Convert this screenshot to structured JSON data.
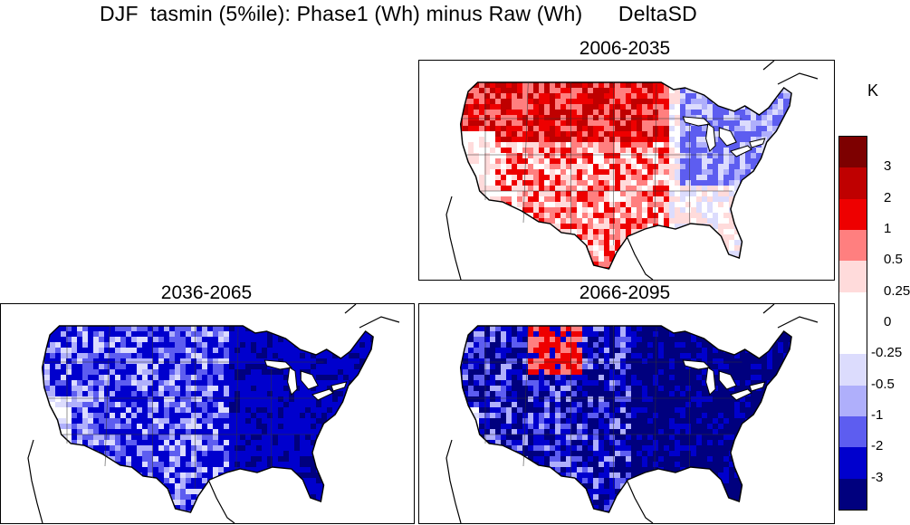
{
  "figure": {
    "title": "DJF  tasmin (5%ile): Phase1 (Wh) minus Raw (Wh)      DeltaSD"
  },
  "panels": [
    {
      "title": "2006-2035",
      "pattern": "mostly-warm",
      "dominant": "red"
    },
    {
      "title": "2036-2065",
      "pattern": "cold",
      "dominant": "blue"
    },
    {
      "title": "2066-2095",
      "pattern": "very-cold",
      "dominant": "dark-blue"
    }
  ],
  "colorbar": {
    "unit": "K",
    "colors": [
      "#7d0000",
      "#bf0000",
      "#ee0000",
      "#ff7f7f",
      "#ffdbdb",
      "#ffffff",
      "#ffffff",
      "#dcdcfd",
      "#afaffb",
      "#5d5df0",
      "#0000cd",
      "#00007e"
    ],
    "labels": [
      "3",
      "2",
      "1",
      "0.5",
      "0.25",
      "0",
      "-0.25",
      "-0.5",
      "-1",
      "-2",
      "-3"
    ]
  }
}
